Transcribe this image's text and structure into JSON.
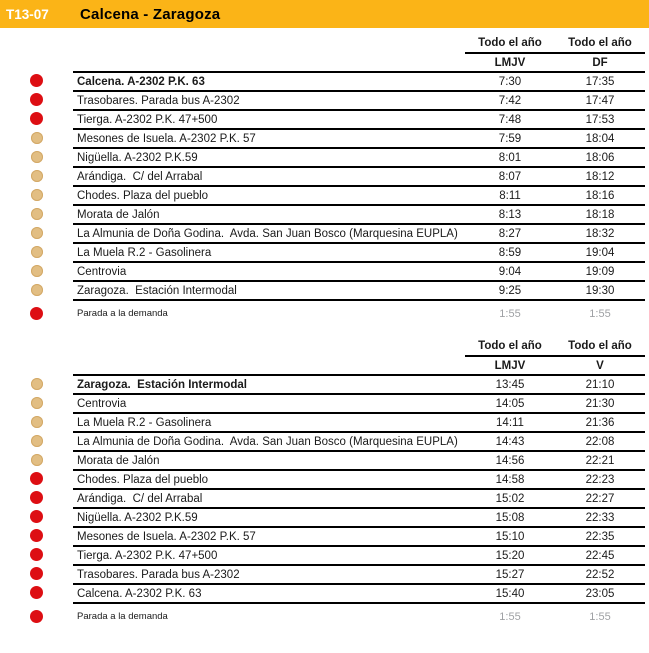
{
  "header": {
    "route_code": "T13-07",
    "title": "Calcena - Zaragoza"
  },
  "colors": {
    "accent_amber": "#FBB417",
    "dot_red": "#DD0E13",
    "dot_tan": "#E2BE83",
    "muted_gray": "#9FA1A4",
    "line_black": "#000000"
  },
  "tables": [
    {
      "direction": "outbound",
      "season_headers": [
        "Todo el año",
        "Todo el año"
      ],
      "day_headers": [
        "LMJV",
        "DF"
      ],
      "rows": [
        {
          "stop": "Calcena. A-2302 P.K. 63",
          "bold": true,
          "dot": "red",
          "times": [
            "7:30",
            "17:35"
          ]
        },
        {
          "stop": "Trasobares. Parada bus A-2302",
          "dot": "red",
          "times": [
            "7:42",
            "17:47"
          ]
        },
        {
          "stop": "Tierga. A-2302 P.K. 47+500",
          "dot": "red",
          "times": [
            "7:48",
            "17:53"
          ]
        },
        {
          "stop": "Mesones de Isuela. A-2302 P.K. 57",
          "dot": "tan",
          "times": [
            "7:59",
            "18:04"
          ]
        },
        {
          "stop": "Nigüella. A-2302 P.K.59",
          "dot": "tan",
          "times": [
            "8:01",
            "18:06"
          ]
        },
        {
          "stop": "Arándiga.  C/ del Arrabal",
          "dot": "tan",
          "times": [
            "8:07",
            "18:12"
          ]
        },
        {
          "stop": "Chodes. Plaza del pueblo",
          "dot": "tan",
          "times": [
            "8:11",
            "18:16"
          ]
        },
        {
          "stop": "Morata de Jalón",
          "dot": "tan",
          "times": [
            "8:13",
            "18:18"
          ]
        },
        {
          "stop": "La Almunia de Doña Godina.  Avda. San Juan Bosco (Marquesina EUPLA)",
          "dot": "tan",
          "times": [
            "8:27",
            "18:32"
          ]
        },
        {
          "stop": "La Muela R.2 - Gasolinera",
          "dot": "tan",
          "times": [
            "8:59",
            "19:04"
          ]
        },
        {
          "stop": "Centrovia",
          "dot": "tan",
          "times": [
            "9:04",
            "19:09"
          ]
        },
        {
          "stop": "Zaragoza.  Estación Intermodal",
          "dot": "tan",
          "times": [
            "9:25",
            "19:30"
          ]
        }
      ],
      "demand_row": {
        "label": "Parada a la demanda",
        "dot": "red",
        "times": [
          "1:55",
          "1:55"
        ]
      }
    },
    {
      "direction": "return",
      "season_headers": [
        "Todo el año",
        "Todo el año"
      ],
      "day_headers": [
        "LMJV",
        "V"
      ],
      "rows": [
        {
          "stop": "Zaragoza.  Estación Intermodal",
          "bold": true,
          "dot": "tan",
          "times": [
            "13:45",
            "21:10"
          ]
        },
        {
          "stop": "Centrovia",
          "dot": "tan",
          "times": [
            "14:05",
            "21:30"
          ]
        },
        {
          "stop": "La Muela R.2 - Gasolinera",
          "dot": "tan",
          "times": [
            "14:11",
            "21:36"
          ]
        },
        {
          "stop": "La Almunia de Doña Godina.  Avda. San Juan Bosco (Marquesina EUPLA)",
          "dot": "tan",
          "times": [
            "14:43",
            "22:08"
          ]
        },
        {
          "stop": "Morata de Jalón",
          "dot": "tan",
          "times": [
            "14:56",
            "22:21"
          ]
        },
        {
          "stop": "Chodes. Plaza del pueblo",
          "dot": "red",
          "times": [
            "14:58",
            "22:23"
          ]
        },
        {
          "stop": "Arándiga.  C/ del Arrabal",
          "dot": "red",
          "times": [
            "15:02",
            "22:27"
          ]
        },
        {
          "stop": "Nigüella. A-2302 P.K.59",
          "dot": "red",
          "times": [
            "15:08",
            "22:33"
          ]
        },
        {
          "stop": "Mesones de Isuela. A-2302 P.K. 57",
          "dot": "red",
          "times": [
            "15:10",
            "22:35"
          ]
        },
        {
          "stop": "Tierga. A-2302 P.K. 47+500",
          "dot": "red",
          "times": [
            "15:20",
            "22:45"
          ]
        },
        {
          "stop": "Trasobares. Parada bus A-2302",
          "dot": "red",
          "times": [
            "15:27",
            "22:52"
          ]
        },
        {
          "stop": "Calcena. A-2302 P.K. 63",
          "dot": "red",
          "times": [
            "15:40",
            "23:05"
          ]
        }
      ],
      "demand_row": {
        "label": "Parada a la demanda",
        "dot": "red",
        "times": [
          "1:55",
          "1:55"
        ]
      }
    }
  ]
}
